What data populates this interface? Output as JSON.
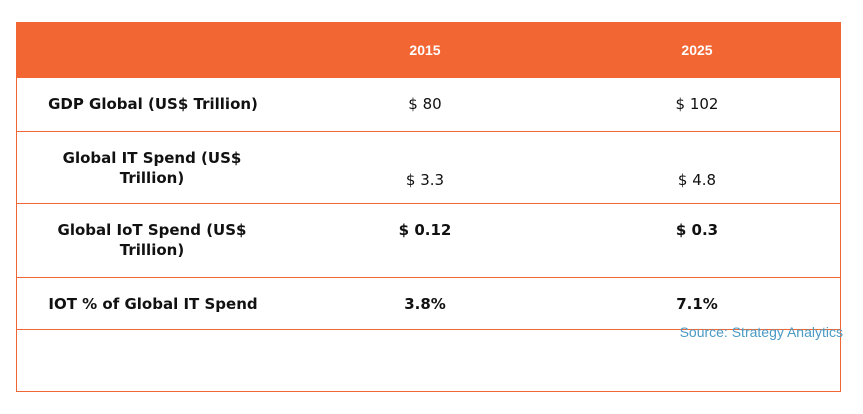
{
  "header": {
    "col1": "",
    "col2": "2015",
    "col3": "2025"
  },
  "rows": [
    {
      "label": "GDP Global (US$ Trillion)",
      "v2015": "$ 80",
      "v2025": "$ 102"
    },
    {
      "label": "Global IT Spend (US$ Trillion)",
      "v2015": "$ 3.3",
      "v2025": "$ 4.8"
    },
    {
      "label": "Global IoT Spend (US$ Trillion)",
      "v2015": "$ 0.12",
      "v2025": "$ 0.3"
    },
    {
      "label": "IOT % of Global IT Spend",
      "v2015": "3.8%",
      "v2025": "7.1%"
    }
  ],
  "source": "Source: Strategy Analytics",
  "colors": {
    "accent": "#f26634",
    "source_text": "#4a9ac4"
  }
}
